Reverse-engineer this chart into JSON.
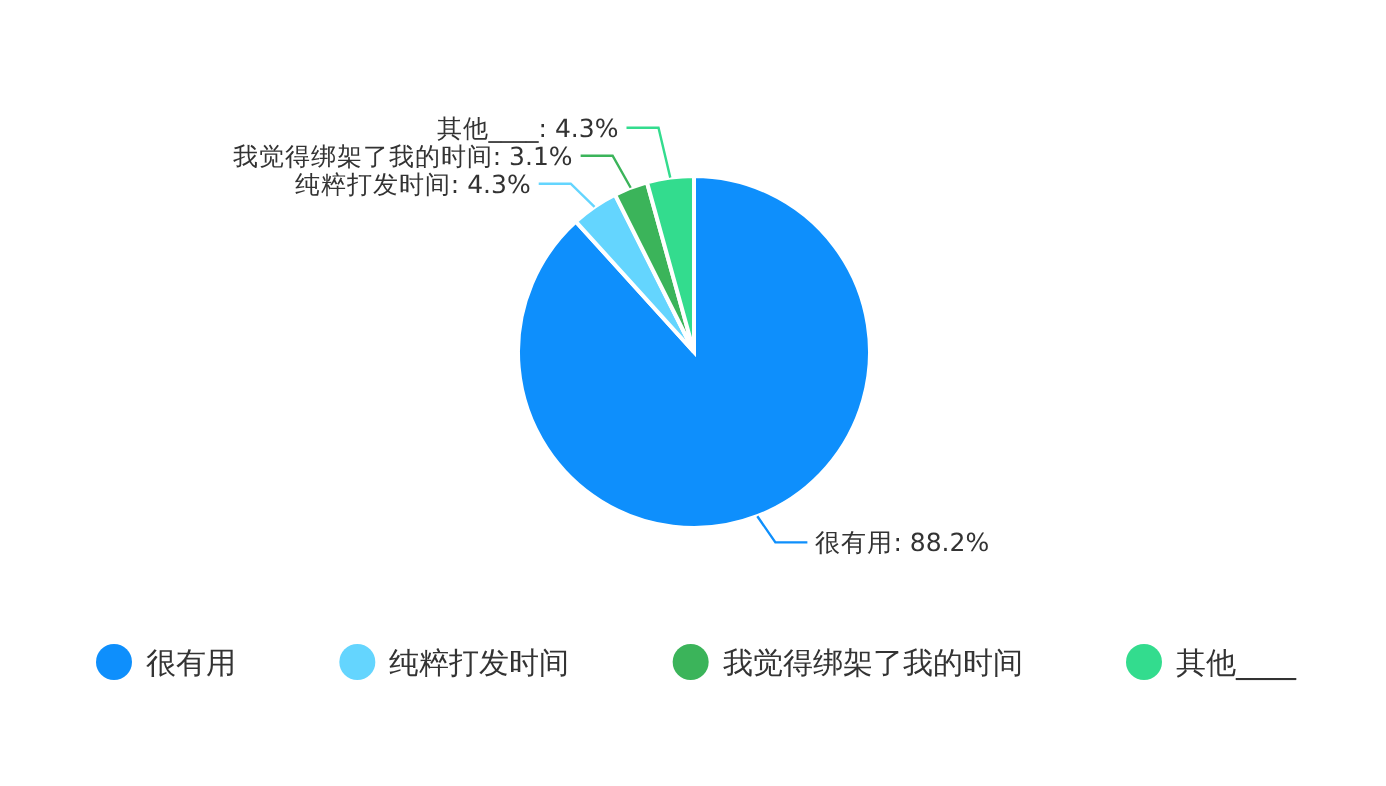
{
  "chart_data": {
    "type": "pie",
    "categories": [
      "很有用",
      "纯粹打发时间",
      "我觉得绑架了我的时间",
      "其他____"
    ],
    "values": [
      88.2,
      4.3,
      3.1,
      4.3
    ],
    "value_labels": [
      "很有用: 88.2%",
      "纯粹打发时间: 4.3%",
      "我觉得绑架了我的时间: 3.1%",
      "其他____: 4.3%"
    ],
    "colors": [
      "#0e8ffc",
      "#64d5fe",
      "#3bb45a",
      "#33dc8e"
    ],
    "legend": "bottom"
  }
}
